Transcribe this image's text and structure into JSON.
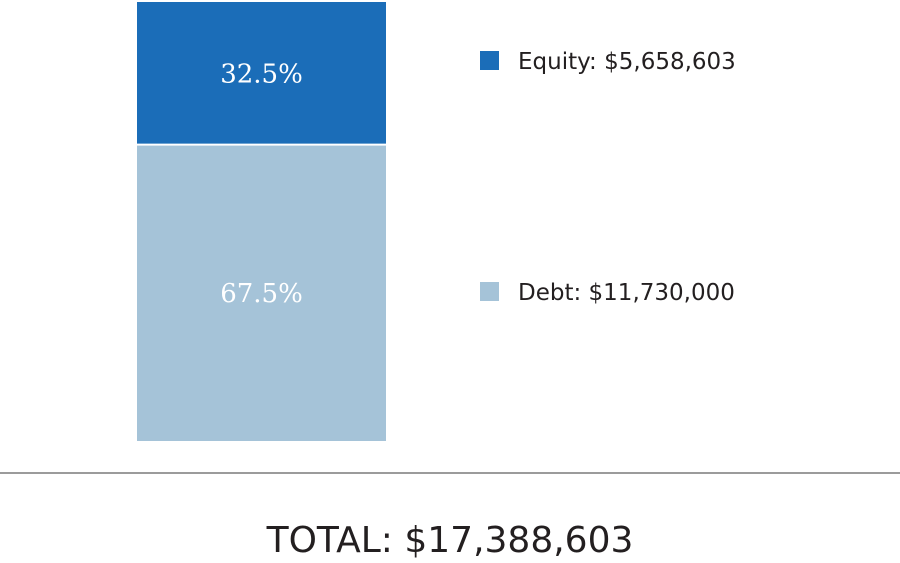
{
  "chart_data": {
    "type": "bar",
    "subtype": "stacked-100",
    "categories": [
      ""
    ],
    "series": [
      {
        "name": "Equity",
        "value": 5658603,
        "percent": 32.5,
        "percent_label": "32.5%",
        "legend_label": "Equity: $5,658,603",
        "color": "#1b6db8"
      },
      {
        "name": "Debt",
        "value": 11730000,
        "percent": 67.5,
        "percent_label": "67.5%",
        "legend_label": "Debt: $11,730,000",
        "color": "#a5c3d8"
      }
    ],
    "legend_position": "right",
    "grid": false,
    "total_label": "TOTAL: $17,388,603"
  }
}
